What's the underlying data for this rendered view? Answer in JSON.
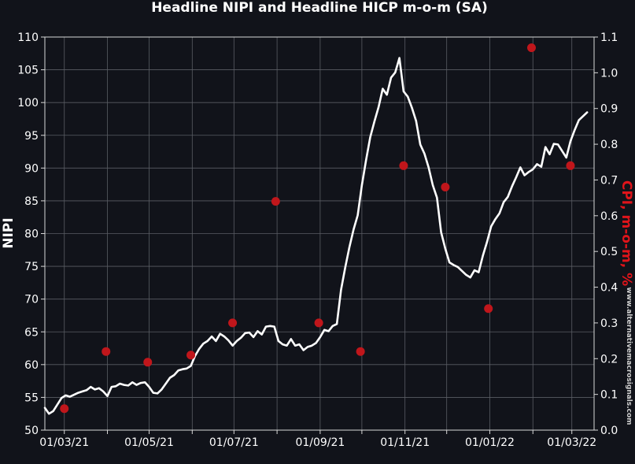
{
  "chart_data": {
    "type": "line",
    "title": "Headline NIPI and Headline HICP m-o-m (SA)",
    "ylabel": "NIPI",
    "y2label": "CPI, m-o-m, %",
    "watermark": "www.alternativemacrosignals.com",
    "ylim": [
      50,
      110
    ],
    "y2lim": [
      0.0,
      1.1
    ],
    "y_ticks": [
      "50",
      "55",
      "60",
      "65",
      "70",
      "75",
      "80",
      "85",
      "90",
      "95",
      "100",
      "105",
      "110"
    ],
    "y2_ticks": [
      "0.0",
      "0.1",
      "0.2",
      "0.3",
      "0.4",
      "0.5",
      "0.6",
      "0.7",
      "0.8",
      "0.9",
      "1.0",
      "1.1"
    ],
    "x_tick_labels": [
      "01/03/21",
      "01/05/21",
      "01/07/21",
      "01/09/21",
      "01/11/21",
      "01/01/22",
      "01/03/22"
    ],
    "x_grid_dates": [
      "2021-03-01",
      "2021-04-01",
      "2021-05-01",
      "2021-06-01",
      "2021-07-01",
      "2021-08-01",
      "2021-09-01",
      "2021-10-01",
      "2021-11-01",
      "2021-12-01",
      "2022-01-01",
      "2022-02-01",
      "2022-03-01"
    ],
    "x_label_dates": [
      "2021-03-01",
      "2021-05-01",
      "2021-07-01",
      "2021-09-01",
      "2021-11-01",
      "2022-01-01",
      "2022-03-01"
    ],
    "xlim": [
      "2021-02-15",
      "2022-03-17"
    ],
    "grid": true,
    "colors": {
      "background": "#11131a",
      "nipi_line": "#ffffff",
      "cpi_points": "#c0161b",
      "grid": "#5a5d64",
      "y2label": "#e0141a"
    },
    "series": [
      {
        "name": "NIPI",
        "axis": "left",
        "points": [
          [
            "2021-02-15",
            53.4
          ],
          [
            "2021-02-18",
            52.5
          ],
          [
            "2021-02-21",
            52.9
          ],
          [
            "2021-02-24",
            53.9
          ],
          [
            "2021-02-27",
            54.9
          ],
          [
            "2021-03-02",
            55.3
          ],
          [
            "2021-03-05",
            55.1
          ],
          [
            "2021-03-08",
            55.4
          ],
          [
            "2021-03-11",
            55.7
          ],
          [
            "2021-03-14",
            55.9
          ],
          [
            "2021-03-17",
            56.1
          ],
          [
            "2021-03-20",
            56.6
          ],
          [
            "2021-03-23",
            56.2
          ],
          [
            "2021-03-26",
            56.4
          ],
          [
            "2021-03-29",
            55.9
          ],
          [
            "2021-04-01",
            55.2
          ],
          [
            "2021-04-04",
            56.6
          ],
          [
            "2021-04-07",
            56.7
          ],
          [
            "2021-04-10",
            57.1
          ],
          [
            "2021-04-13",
            56.9
          ],
          [
            "2021-04-16",
            56.8
          ],
          [
            "2021-04-19",
            57.3
          ],
          [
            "2021-04-22",
            56.9
          ],
          [
            "2021-04-25",
            57.2
          ],
          [
            "2021-04-28",
            57.3
          ],
          [
            "2021-05-01",
            56.6
          ],
          [
            "2021-05-04",
            55.7
          ],
          [
            "2021-05-07",
            55.6
          ],
          [
            "2021-05-10",
            56.2
          ],
          [
            "2021-05-13",
            57.1
          ],
          [
            "2021-05-16",
            58.0
          ],
          [
            "2021-05-19",
            58.4
          ],
          [
            "2021-05-22",
            59.1
          ],
          [
            "2021-05-25",
            59.3
          ],
          [
            "2021-05-28",
            59.4
          ],
          [
            "2021-05-31",
            59.8
          ],
          [
            "2021-06-03",
            61.3
          ],
          [
            "2021-06-06",
            62.4
          ],
          [
            "2021-06-09",
            63.2
          ],
          [
            "2021-06-12",
            63.6
          ],
          [
            "2021-06-15",
            64.3
          ],
          [
            "2021-06-18",
            63.6
          ],
          [
            "2021-06-21",
            64.7
          ],
          [
            "2021-06-24",
            64.3
          ],
          [
            "2021-06-27",
            63.7
          ],
          [
            "2021-06-30",
            62.9
          ],
          [
            "2021-07-03",
            63.6
          ],
          [
            "2021-07-06",
            64.1
          ],
          [
            "2021-07-09",
            64.8
          ],
          [
            "2021-07-12",
            64.9
          ],
          [
            "2021-07-15",
            64.2
          ],
          [
            "2021-07-18",
            65.1
          ],
          [
            "2021-07-21",
            64.6
          ],
          [
            "2021-07-24",
            65.8
          ],
          [
            "2021-07-27",
            65.9
          ],
          [
            "2021-07-30",
            65.8
          ],
          [
            "2021-08-02",
            63.6
          ],
          [
            "2021-08-05",
            63.1
          ],
          [
            "2021-08-08",
            62.9
          ],
          [
            "2021-08-11",
            63.9
          ],
          [
            "2021-08-14",
            62.9
          ],
          [
            "2021-08-17",
            63.1
          ],
          [
            "2021-08-20",
            62.2
          ],
          [
            "2021-08-23",
            62.7
          ],
          [
            "2021-08-26",
            62.9
          ],
          [
            "2021-08-29",
            63.3
          ],
          [
            "2021-09-01",
            64.2
          ],
          [
            "2021-09-04",
            65.3
          ],
          [
            "2021-09-07",
            65.1
          ],
          [
            "2021-09-10",
            65.9
          ],
          [
            "2021-09-13",
            66.2
          ],
          [
            "2021-09-16",
            71.4
          ],
          [
            "2021-09-19",
            74.8
          ],
          [
            "2021-09-22",
            77.9
          ],
          [
            "2021-09-25",
            80.6
          ],
          [
            "2021-09-28",
            82.8
          ],
          [
            "2021-10-01",
            87.4
          ],
          [
            "2021-10-04",
            91.2
          ],
          [
            "2021-10-07",
            94.7
          ],
          [
            "2021-10-10",
            97.1
          ],
          [
            "2021-10-13",
            99.3
          ],
          [
            "2021-10-16",
            102.1
          ],
          [
            "2021-10-19",
            101.2
          ],
          [
            "2021-10-22",
            103.8
          ],
          [
            "2021-10-25",
            104.6
          ],
          [
            "2021-10-28",
            106.8
          ],
          [
            "2021-10-31",
            101.7
          ],
          [
            "2021-11-03",
            100.9
          ],
          [
            "2021-11-06",
            99.2
          ],
          [
            "2021-11-09",
            97.2
          ],
          [
            "2021-11-12",
            93.6
          ],
          [
            "2021-11-15",
            92.2
          ],
          [
            "2021-11-18",
            90.1
          ],
          [
            "2021-11-21",
            87.4
          ],
          [
            "2021-11-24",
            85.5
          ],
          [
            "2021-11-27",
            80.2
          ],
          [
            "2021-11-30",
            77.7
          ],
          [
            "2021-12-03",
            75.6
          ],
          [
            "2021-12-06",
            75.2
          ],
          [
            "2021-12-09",
            74.9
          ],
          [
            "2021-12-12",
            74.3
          ],
          [
            "2021-12-15",
            73.7
          ],
          [
            "2021-12-18",
            73.3
          ],
          [
            "2021-12-21",
            74.4
          ],
          [
            "2021-12-24",
            74.1
          ],
          [
            "2021-12-27",
            76.6
          ],
          [
            "2021-12-30",
            78.7
          ],
          [
            "2022-01-02",
            81.1
          ],
          [
            "2022-01-05",
            82.2
          ],
          [
            "2022-01-08",
            83.1
          ],
          [
            "2022-01-11",
            84.8
          ],
          [
            "2022-01-14",
            85.6
          ],
          [
            "2022-01-17",
            87.2
          ],
          [
            "2022-01-20",
            88.6
          ],
          [
            "2022-01-23",
            90.1
          ],
          [
            "2022-01-26",
            88.9
          ],
          [
            "2022-01-29",
            89.4
          ],
          [
            "2022-02-01",
            89.8
          ],
          [
            "2022-02-04",
            90.6
          ],
          [
            "2022-02-07",
            90.2
          ],
          [
            "2022-02-10",
            93.2
          ],
          [
            "2022-02-13",
            92.1
          ],
          [
            "2022-02-16",
            93.7
          ],
          [
            "2022-02-19",
            93.6
          ],
          [
            "2022-02-22",
            92.6
          ],
          [
            "2022-02-25",
            91.6
          ],
          [
            "2022-02-28",
            94.1
          ],
          [
            "2022-03-03",
            95.8
          ],
          [
            "2022-03-06",
            97.3
          ],
          [
            "2022-03-09",
            97.9
          ],
          [
            "2022-03-12",
            98.5
          ]
        ]
      },
      {
        "name": "CPI, m-o-m, %",
        "axis": "right",
        "points": [
          [
            "2021-03-01",
            0.06
          ],
          [
            "2021-03-31",
            0.22
          ],
          [
            "2021-04-30",
            0.19
          ],
          [
            "2021-05-31",
            0.21
          ],
          [
            "2021-06-30",
            0.3
          ],
          [
            "2021-07-31",
            0.64
          ],
          [
            "2021-08-31",
            0.3
          ],
          [
            "2021-09-30",
            0.22
          ],
          [
            "2021-10-31",
            0.74
          ],
          [
            "2021-11-30",
            0.68
          ],
          [
            "2021-12-31",
            0.34
          ],
          [
            "2022-01-31",
            1.07
          ],
          [
            "2022-02-28",
            0.74
          ]
        ]
      }
    ]
  }
}
